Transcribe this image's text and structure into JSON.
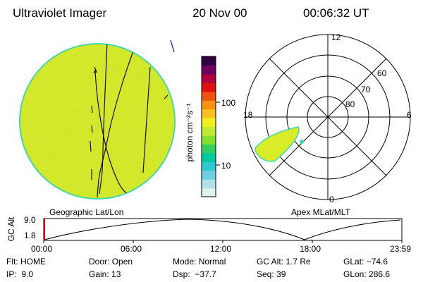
{
  "header": {
    "title": "Ultraviolet Imager",
    "date": "20 Nov 00",
    "time": "00:06:32 UT"
  },
  "colorbar": {
    "label": "photon cm⁻²s⁻¹",
    "ticks": [
      "100",
      "10"
    ],
    "colors": [
      "#e0f0f0",
      "#b0e0e8",
      "#70d0e0",
      "#30c8d0",
      "#00c8a0",
      "#30d060",
      "#80e030",
      "#c0e830",
      "#f0f020",
      "#f8c020",
      "#f89010",
      "#f05010",
      "#e01010",
      "#b00040",
      "#700060",
      "#300040"
    ]
  },
  "geo_panel": {
    "label": "Geographic Lat/Lon",
    "fill_color": "#d8ec28"
  },
  "polar_panel": {
    "label": "Apex MLat/MLT",
    "hour_labels": {
      "top": "12",
      "left": "18",
      "right": "6",
      "bottom": "0"
    },
    "lat_labels": [
      "60",
      "70",
      "80"
    ]
  },
  "altitude_plot": {
    "ylabel": "GC Alt",
    "y_ticks": [
      "9.0",
      "1.8"
    ],
    "x_ticks": [
      "00:00",
      "06:00",
      "12:00",
      "18:00",
      "23:59"
    ],
    "marker_color": "#e00000"
  },
  "info_rows": [
    [
      {
        "label": "Flt:",
        "value": "HOME"
      },
      {
        "label": "Door:",
        "value": "Open"
      },
      {
        "label": "Mode:",
        "value": "Normal"
      },
      {
        "label": "GC Alt:",
        "value": "1.7 Re"
      },
      {
        "label": "GLat:",
        "value": "−74.6"
      }
    ],
    [
      {
        "label": "IP:",
        "value": "9.0"
      },
      {
        "label": "Gain:",
        "value": "13"
      },
      {
        "label": "Dsp:",
        "value": "−37.7"
      },
      {
        "label": "Seq:",
        "value": "39"
      },
      {
        "label": "GLon:",
        "value": "286.6"
      }
    ]
  ]
}
